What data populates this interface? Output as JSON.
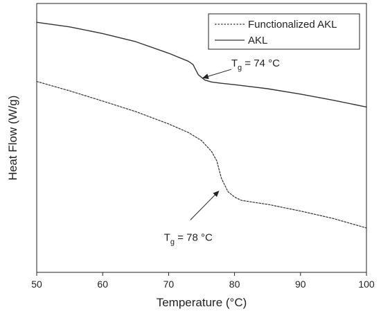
{
  "chart_data": {
    "type": "line",
    "xlabel": "Temperature (°C)",
    "ylabel": "Heat Flow (W/g)",
    "xlim": [
      50,
      100
    ],
    "ylim": [
      0,
      100
    ],
    "x_ticks": [
      "50",
      "60",
      "70",
      "80",
      "90",
      "100"
    ],
    "y_ticks_labeled": false,
    "grid": false,
    "legend_position": "top-right",
    "series": [
      {
        "name": "Functionalized AKL",
        "style": "dashed",
        "color": "#333333",
        "points": [
          [
            50,
            71
          ],
          [
            55,
            67.5
          ],
          [
            60,
            63.7
          ],
          [
            65,
            59.8
          ],
          [
            70,
            55.2
          ],
          [
            73,
            52
          ],
          [
            75,
            49
          ],
          [
            76.5,
            45
          ],
          [
            77.3,
            41.5
          ],
          [
            78,
            35
          ],
          [
            79,
            30
          ],
          [
            80,
            28
          ],
          [
            81,
            26.8
          ],
          [
            83,
            26
          ],
          [
            85,
            25.3
          ],
          [
            90,
            22.8
          ],
          [
            95,
            20
          ],
          [
            100,
            16.5
          ]
        ]
      },
      {
        "name": "AKL",
        "style": "solid",
        "color": "#333333",
        "points": [
          [
            50,
            93
          ],
          [
            55,
            91.3
          ],
          [
            60,
            88.8
          ],
          [
            65,
            85.8
          ],
          [
            70,
            81.5
          ],
          [
            73,
            78.5
          ],
          [
            73.7,
            77.3
          ],
          [
            74.5,
            73.5
          ],
          [
            75.5,
            71.5
          ],
          [
            76.5,
            70.8
          ],
          [
            78,
            70.3
          ],
          [
            80,
            69.8
          ],
          [
            85,
            68.3
          ],
          [
            90,
            66.3
          ],
          [
            95,
            64
          ],
          [
            100,
            61.5
          ]
        ]
      }
    ],
    "annotations": [
      {
        "prefix": "T",
        "subscript": "g",
        "suffix": " = 74 °C",
        "text_at": [
          79.5,
          76.6
        ],
        "arrow_from": [
          79.5,
          75.5
        ],
        "arrow_to": [
          75.2,
          72.3
        ]
      },
      {
        "prefix": "T",
        "subscript": "g",
        "suffix": " = 78 °C",
        "text_at": [
          69.3,
          11.7
        ],
        "arrow_from": [
          73.3,
          19.5
        ],
        "arrow_to": [
          77.6,
          30.2
        ]
      }
    ]
  }
}
